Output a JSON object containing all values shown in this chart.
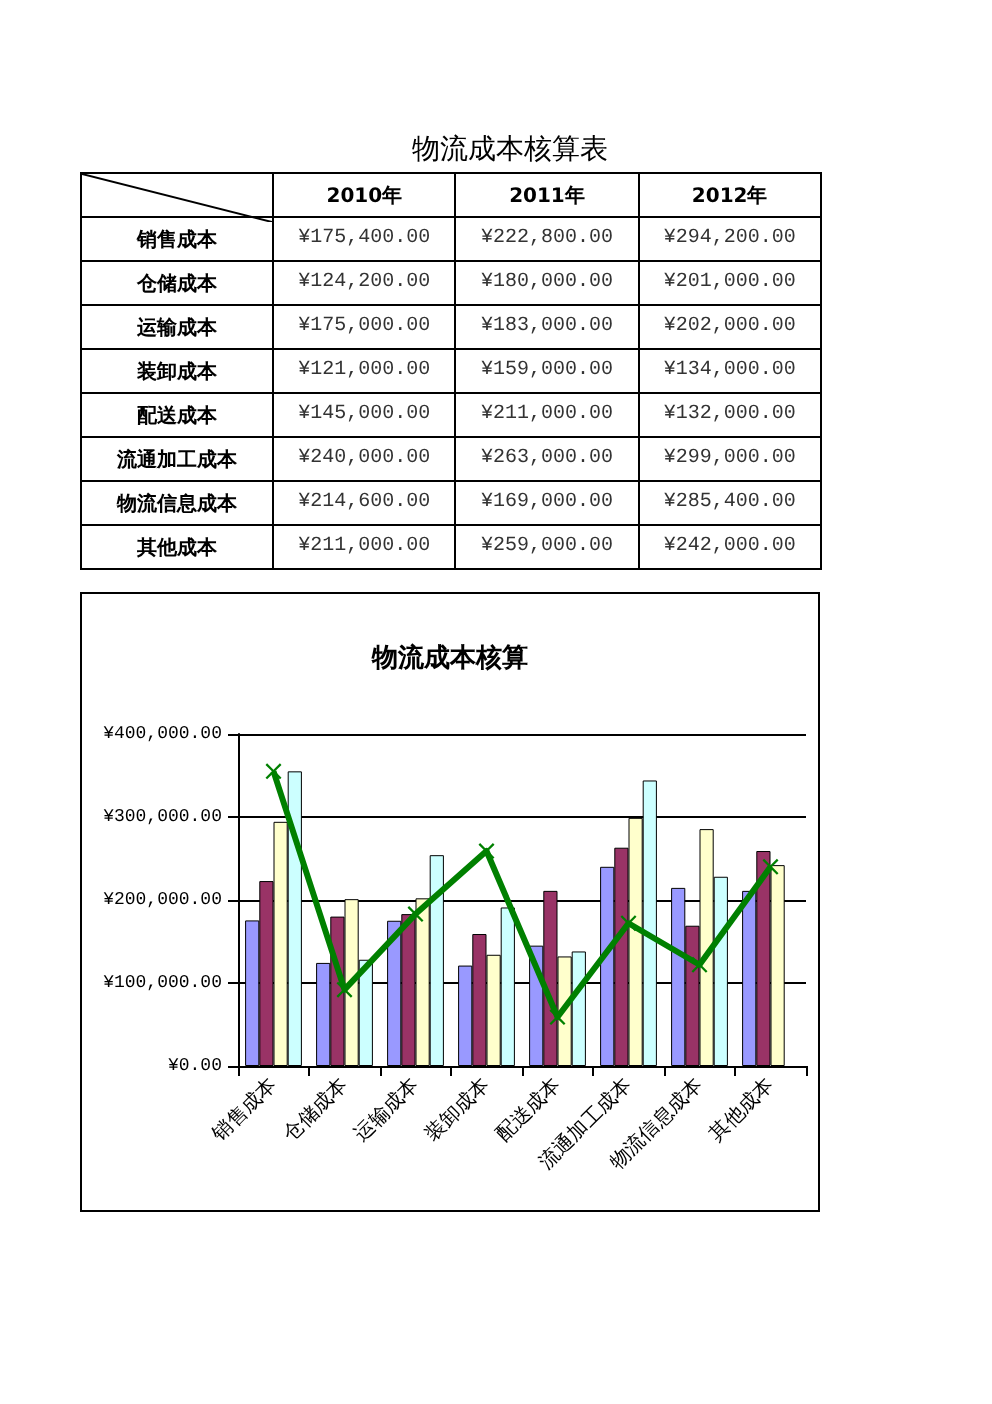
{
  "chart_data": {
    "type": "bar",
    "title": "物流成本核算表",
    "subtitle": "物流成本核算",
    "categories": [
      "销售成本",
      "仓储成本",
      "运输成本",
      "装卸成本",
      "配送成本",
      "流通加工成本",
      "物流信息成本",
      "其他成本"
    ],
    "series": [
      {
        "color": "#9999ff",
        "values": [
          175400,
          124200,
          175000,
          121000,
          145000,
          240000,
          214600,
          211000
        ]
      },
      {
        "color": "#993366",
        "values": [
          222800,
          180000,
          183000,
          159000,
          211000,
          263000,
          169000,
          259000
        ]
      },
      {
        "color": "#ffffcc",
        "values": [
          294200,
          201000,
          202000,
          134000,
          132000,
          299000,
          285400,
          242000
        ]
      },
      {
        "color": "#ccffff",
        "values": [
          355000,
          128000,
          254000,
          191000,
          138000,
          344000,
          228000,
          null
        ]
      },
      {
        "type": "line",
        "color": "#008000",
        "values": [
          355000,
          92000,
          183000,
          259000,
          59000,
          172000,
          122000,
          240000
        ]
      }
    ],
    "annotations": [
      "2010年",
      "2011年",
      "2012年",
      "¥175,400.00",
      "¥222,800.00",
      "¥294,200.00",
      "¥124,200.00",
      "¥180,000.00",
      "¥201,000.00",
      "¥175,000.00",
      "¥183,000.00",
      "¥202,000.00",
      "¥121,000.00",
      "¥159,000.00",
      "¥134,000.00",
      "¥145,000.00",
      "¥211,000.00",
      "¥132,000.00",
      "¥240,000.00",
      "¥263,000.00",
      "¥299,000.00",
      "¥214,600.00",
      "¥169,000.00",
      "¥285,400.00",
      "¥211,000.00",
      "¥259,000.00",
      "¥242,000.00"
    ],
    "ylim": [
      0,
      400000
    ],
    "yticks": [
      {
        "value": 0,
        "label": "¥0.00"
      },
      {
        "value": 100000,
        "label": "¥100,000.00"
      },
      {
        "value": 200000,
        "label": "¥200,000.00"
      },
      {
        "value": 300000,
        "label": "¥300,000.00"
      },
      {
        "value": 400000,
        "label": "¥400,000.00"
      }
    ],
    "grid": "y",
    "marker": "cross",
    "line_style": "solid"
  }
}
